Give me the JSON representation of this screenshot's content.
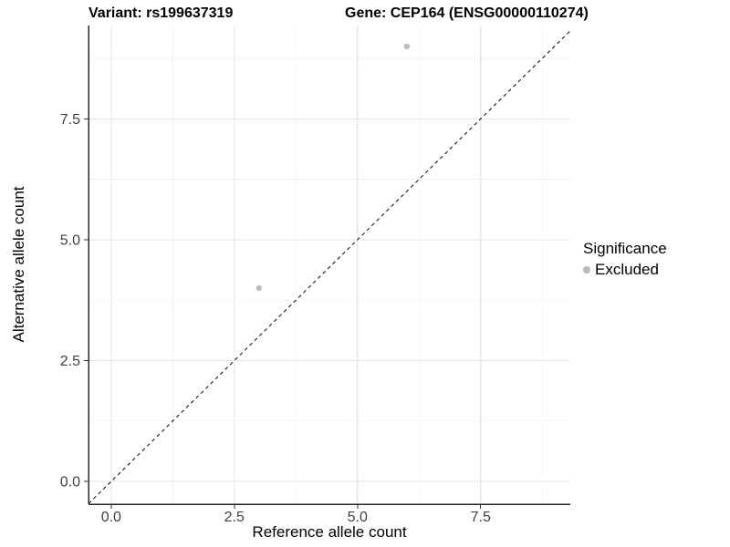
{
  "chart_data": {
    "type": "scatter",
    "titles": [
      {
        "text": "Variant: rs199637319"
      },
      {
        "text": "Gene: CEP164 (ENSG00000110274)"
      }
    ],
    "xlabel": "Reference allele count",
    "ylabel": "Alternative allele count",
    "xlim": [
      -0.46,
      9.32
    ],
    "ylim": [
      -0.47,
      9.43
    ],
    "xticks": {
      "values": [
        0,
        2.5,
        5,
        7.5
      ],
      "labels": [
        "0.0",
        "2.5",
        "5.0",
        "7.5"
      ]
    },
    "yticks": {
      "values": [
        0,
        2.5,
        5,
        7.5
      ],
      "labels": [
        "0.0",
        "2.5",
        "5.0",
        "7.5"
      ]
    },
    "minor_breaks": [
      1.25,
      3.75,
      6.25,
      8.75
    ],
    "grid": {
      "on": true,
      "major_color": "#e5e5e5",
      "minor_color": "#f0f0f0"
    },
    "axis_line_color": "#2a2a2a",
    "tick_label_color": "#404040",
    "identity_line": {
      "slope": 1,
      "intercept": 0,
      "dashed": true,
      "color": "#1a1a1a"
    },
    "series": [
      {
        "name": "Excluded",
        "color": "#bdbdbd",
        "point_radius": 3.2,
        "points": [
          [
            3,
            4
          ],
          [
            6,
            9
          ]
        ]
      }
    ],
    "legend": {
      "title": "Significance",
      "position": "right",
      "items": [
        {
          "label": "Excluded",
          "color": "#b9b9b9"
        }
      ]
    }
  }
}
